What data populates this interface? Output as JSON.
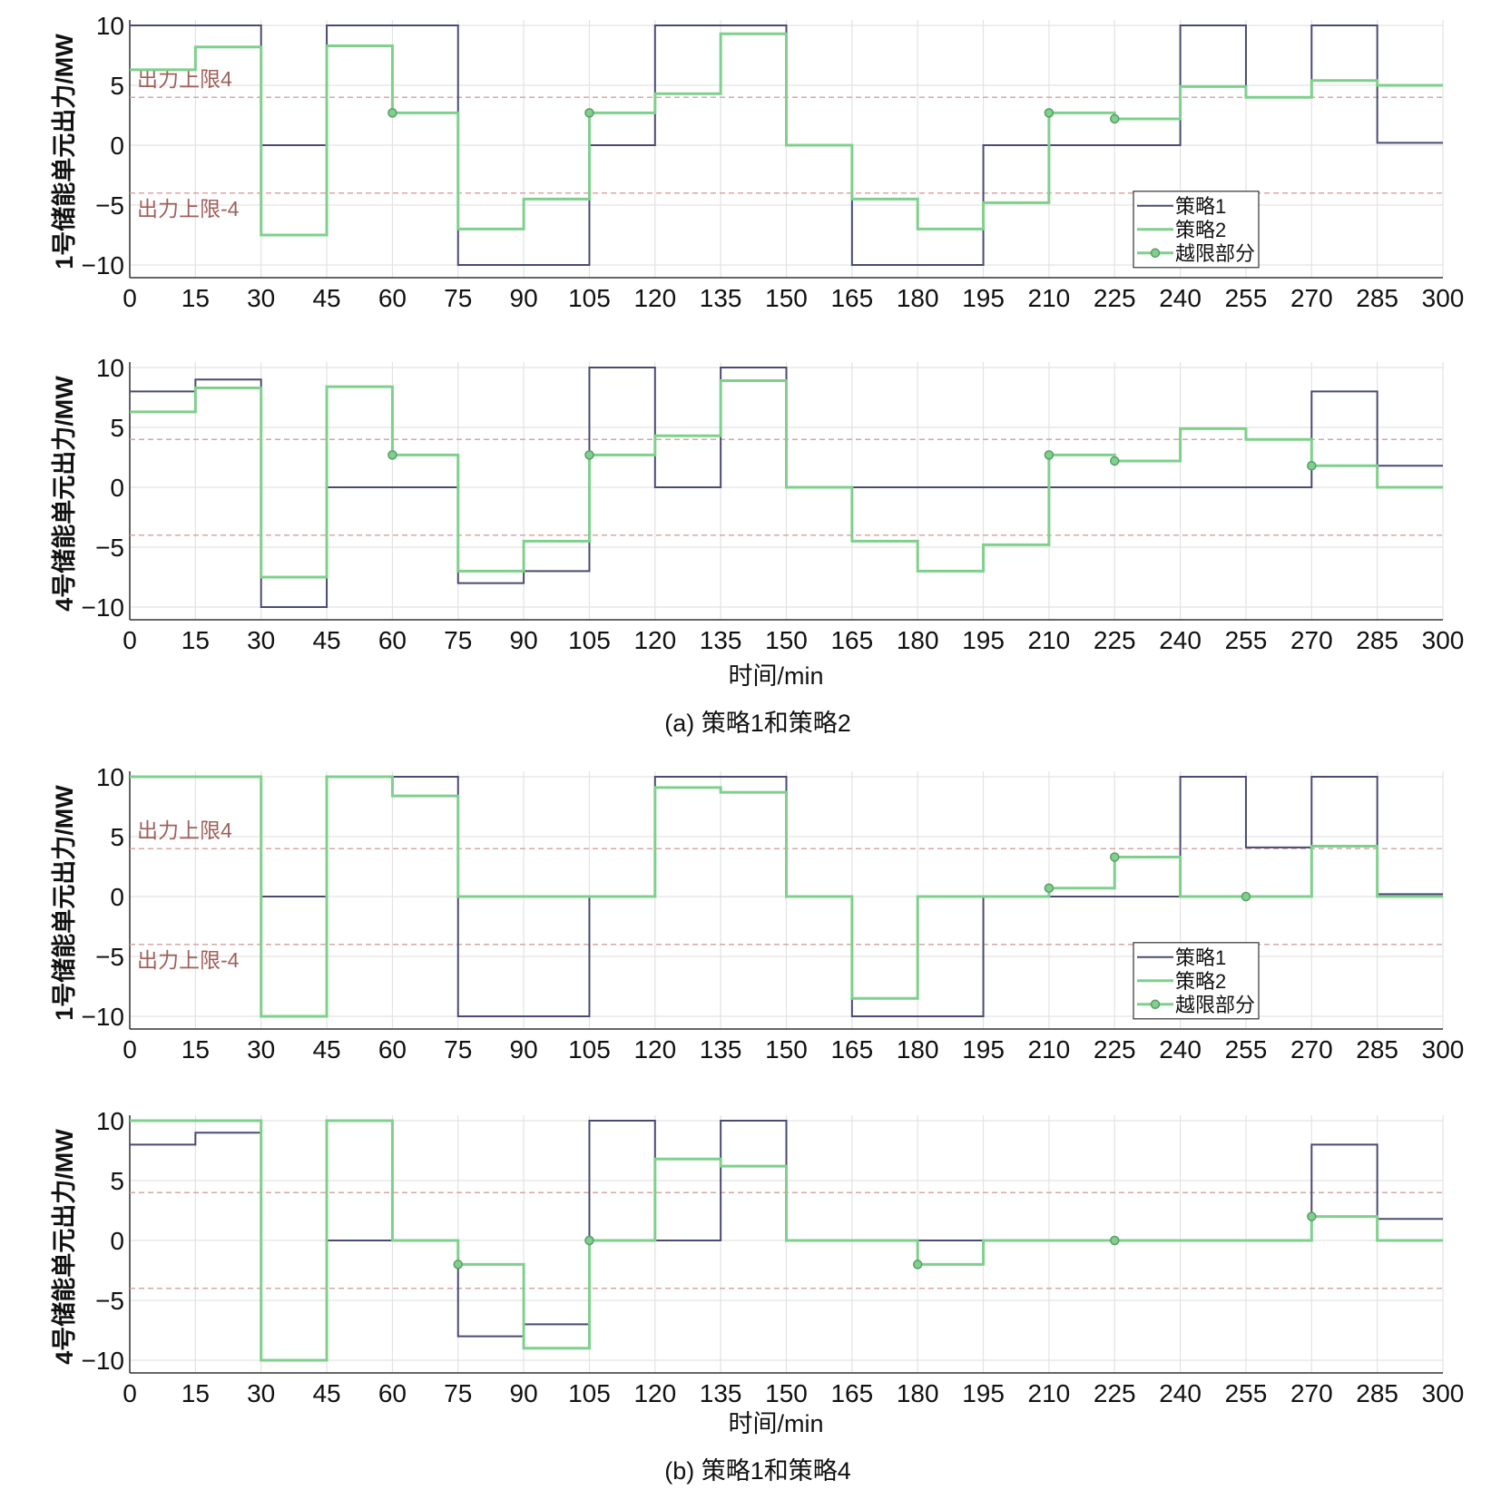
{
  "colors": {
    "strategy1": "#4a4a72",
    "strategy2": "#7fd08c",
    "limit": "#d9a6a6",
    "limit_label": "#a0605a",
    "grid": "#e3e3e3",
    "axis": "#333333"
  },
  "figure": {
    "xlabel": "时间/min",
    "captions": [
      "(a) 策略1和策略2",
      "(b) 策略1和策略4"
    ]
  },
  "chart_data": [
    {
      "type": "line",
      "step": true,
      "panel": "a-top",
      "ylabel": "1号储能单元出力/MW",
      "xlim": [
        0,
        300
      ],
      "ylim": [
        -10,
        10
      ],
      "xticks": [
        "0",
        "15",
        "30",
        "45",
        "60",
        "75",
        "90",
        "105",
        "120",
        "135",
        "150",
        "165",
        "180",
        "195",
        "210",
        "225",
        "240",
        "255",
        "270",
        "285",
        "300"
      ],
      "yticks": [
        "10",
        "5",
        "0",
        "−5",
        "−10"
      ],
      "grid": true,
      "limit_lines": [
        4,
        -4
      ],
      "limit_labels": [
        "出力上限4",
        "出力上限-4"
      ],
      "legend": {
        "position": "lower-right",
        "entries": [
          "策略1",
          "策略2",
          "越限部分"
        ]
      },
      "x": [
        0,
        15,
        30,
        45,
        60,
        75,
        90,
        105,
        120,
        135,
        150,
        165,
        180,
        195,
        210,
        225,
        240,
        255,
        270,
        285
      ],
      "series": [
        {
          "name": "策略1",
          "values": [
            10,
            10,
            0,
            10,
            10,
            -10,
            -10,
            0,
            10,
            10,
            0,
            -10,
            -10,
            0,
            0,
            0,
            10,
            4,
            10,
            0.2
          ]
        },
        {
          "name": "策略2",
          "values": [
            6.3,
            8.2,
            -7.5,
            8.3,
            2.7,
            -7,
            -4.5,
            2.7,
            4.3,
            9.3,
            0,
            -4.5,
            -7,
            -4.8,
            2.7,
            2.2,
            4.9,
            4,
            5.4,
            5
          ]
        }
      ],
      "overlimit_points": [
        [
          60,
          2.7
        ],
        [
          105,
          2.7
        ],
        [
          210,
          2.7
        ],
        [
          225,
          2.2
        ]
      ]
    },
    {
      "type": "line",
      "step": true,
      "panel": "a-bottom",
      "ylabel": "4号储能单元出力/MW",
      "xlim": [
        0,
        300
      ],
      "ylim": [
        -10,
        10
      ],
      "xticks": [
        "0",
        "15",
        "30",
        "45",
        "60",
        "75",
        "90",
        "105",
        "120",
        "135",
        "150",
        "165",
        "180",
        "195",
        "210",
        "225",
        "240",
        "255",
        "270",
        "285",
        "300"
      ],
      "yticks": [
        "10",
        "5",
        "0",
        "−5",
        "−10"
      ],
      "grid": true,
      "limit_lines": [
        4,
        -4
      ],
      "x": [
        0,
        15,
        30,
        45,
        60,
        75,
        90,
        105,
        120,
        135,
        150,
        165,
        180,
        195,
        210,
        225,
        240,
        255,
        270,
        285
      ],
      "series": [
        {
          "name": "策略1",
          "values": [
            8,
            9,
            -10,
            0,
            0,
            -8,
            -7,
            10,
            0,
            10,
            0,
            0,
            0,
            0,
            0,
            0,
            0,
            0,
            8,
            1.8
          ]
        },
        {
          "name": "策略2",
          "values": [
            6.3,
            8.3,
            -7.5,
            8.4,
            2.7,
            -7,
            -4.5,
            2.7,
            4.3,
            8.9,
            0,
            -4.5,
            -7,
            -4.8,
            2.7,
            2.2,
            4.9,
            4,
            1.8,
            0
          ]
        }
      ],
      "overlimit_points": [
        [
          60,
          2.7
        ],
        [
          105,
          2.7
        ],
        [
          210,
          2.7
        ],
        [
          225,
          2.2
        ],
        [
          270,
          1.8
        ]
      ]
    },
    {
      "type": "line",
      "step": true,
      "panel": "b-top",
      "ylabel": "1号储能单元出力/MW",
      "xlim": [
        0,
        300
      ],
      "ylim": [
        -10,
        10
      ],
      "xticks": [
        "0",
        "15",
        "30",
        "45",
        "60",
        "75",
        "90",
        "105",
        "120",
        "135",
        "150",
        "165",
        "180",
        "195",
        "210",
        "225",
        "240",
        "255",
        "270",
        "285",
        "300"
      ],
      "yticks": [
        "10",
        "5",
        "0",
        "−5",
        "−10"
      ],
      "grid": true,
      "limit_lines": [
        4,
        -4
      ],
      "limit_labels": [
        "出力上限4",
        "出力上限-4"
      ],
      "legend": {
        "position": "lower-right",
        "entries": [
          "策略1",
          "策略2",
          "越限部分"
        ]
      },
      "x": [
        0,
        15,
        30,
        45,
        60,
        75,
        90,
        105,
        120,
        135,
        150,
        165,
        180,
        195,
        210,
        225,
        240,
        255,
        270,
        285
      ],
      "series": [
        {
          "name": "策略1",
          "values": [
            10,
            10,
            0,
            10,
            10,
            -10,
            -10,
            0,
            10,
            10,
            0,
            -10,
            -10,
            0,
            0,
            0,
            10,
            4.1,
            10,
            0.2
          ]
        },
        {
          "name": "策略2",
          "values": [
            10,
            10,
            -10,
            10,
            8.4,
            0,
            0,
            0,
            9.1,
            8.7,
            0,
            -8.5,
            0,
            0,
            0.7,
            3.3,
            0,
            0,
            4.2,
            0
          ]
        }
      ],
      "overlimit_points": [
        [
          210,
          0.7
        ],
        [
          225,
          3.3
        ],
        [
          255,
          0
        ]
      ]
    },
    {
      "type": "line",
      "step": true,
      "panel": "b-bottom",
      "ylabel": "4号储能单元出力/MW",
      "xlim": [
        0,
        300
      ],
      "ylim": [
        -10,
        10
      ],
      "xticks": [
        "0",
        "15",
        "30",
        "45",
        "60",
        "75",
        "90",
        "105",
        "120",
        "135",
        "150",
        "165",
        "180",
        "195",
        "210",
        "225",
        "240",
        "255",
        "270",
        "285",
        "300"
      ],
      "yticks": [
        "10",
        "5",
        "0",
        "−5",
        "−10"
      ],
      "grid": true,
      "limit_lines": [
        4,
        -4
      ],
      "x": [
        0,
        15,
        30,
        45,
        60,
        75,
        90,
        105,
        120,
        135,
        150,
        165,
        180,
        195,
        210,
        225,
        240,
        255,
        270,
        285
      ],
      "series": [
        {
          "name": "策略1",
          "values": [
            8,
            9,
            -10,
            0,
            0,
            -8,
            -7,
            10,
            0,
            10,
            0,
            0,
            0,
            0,
            0,
            0,
            0,
            0,
            8,
            1.8
          ]
        },
        {
          "name": "策略2",
          "values": [
            10,
            10,
            -10,
            10,
            0,
            -2,
            -9,
            0,
            6.8,
            6.2,
            0,
            0,
            -2,
            0,
            0,
            0,
            0,
            0,
            2,
            0
          ]
        }
      ],
      "overlimit_points": [
        [
          75,
          -2
        ],
        [
          105,
          0
        ],
        [
          180,
          -2
        ],
        [
          225,
          0
        ],
        [
          270,
          2
        ]
      ]
    }
  ]
}
